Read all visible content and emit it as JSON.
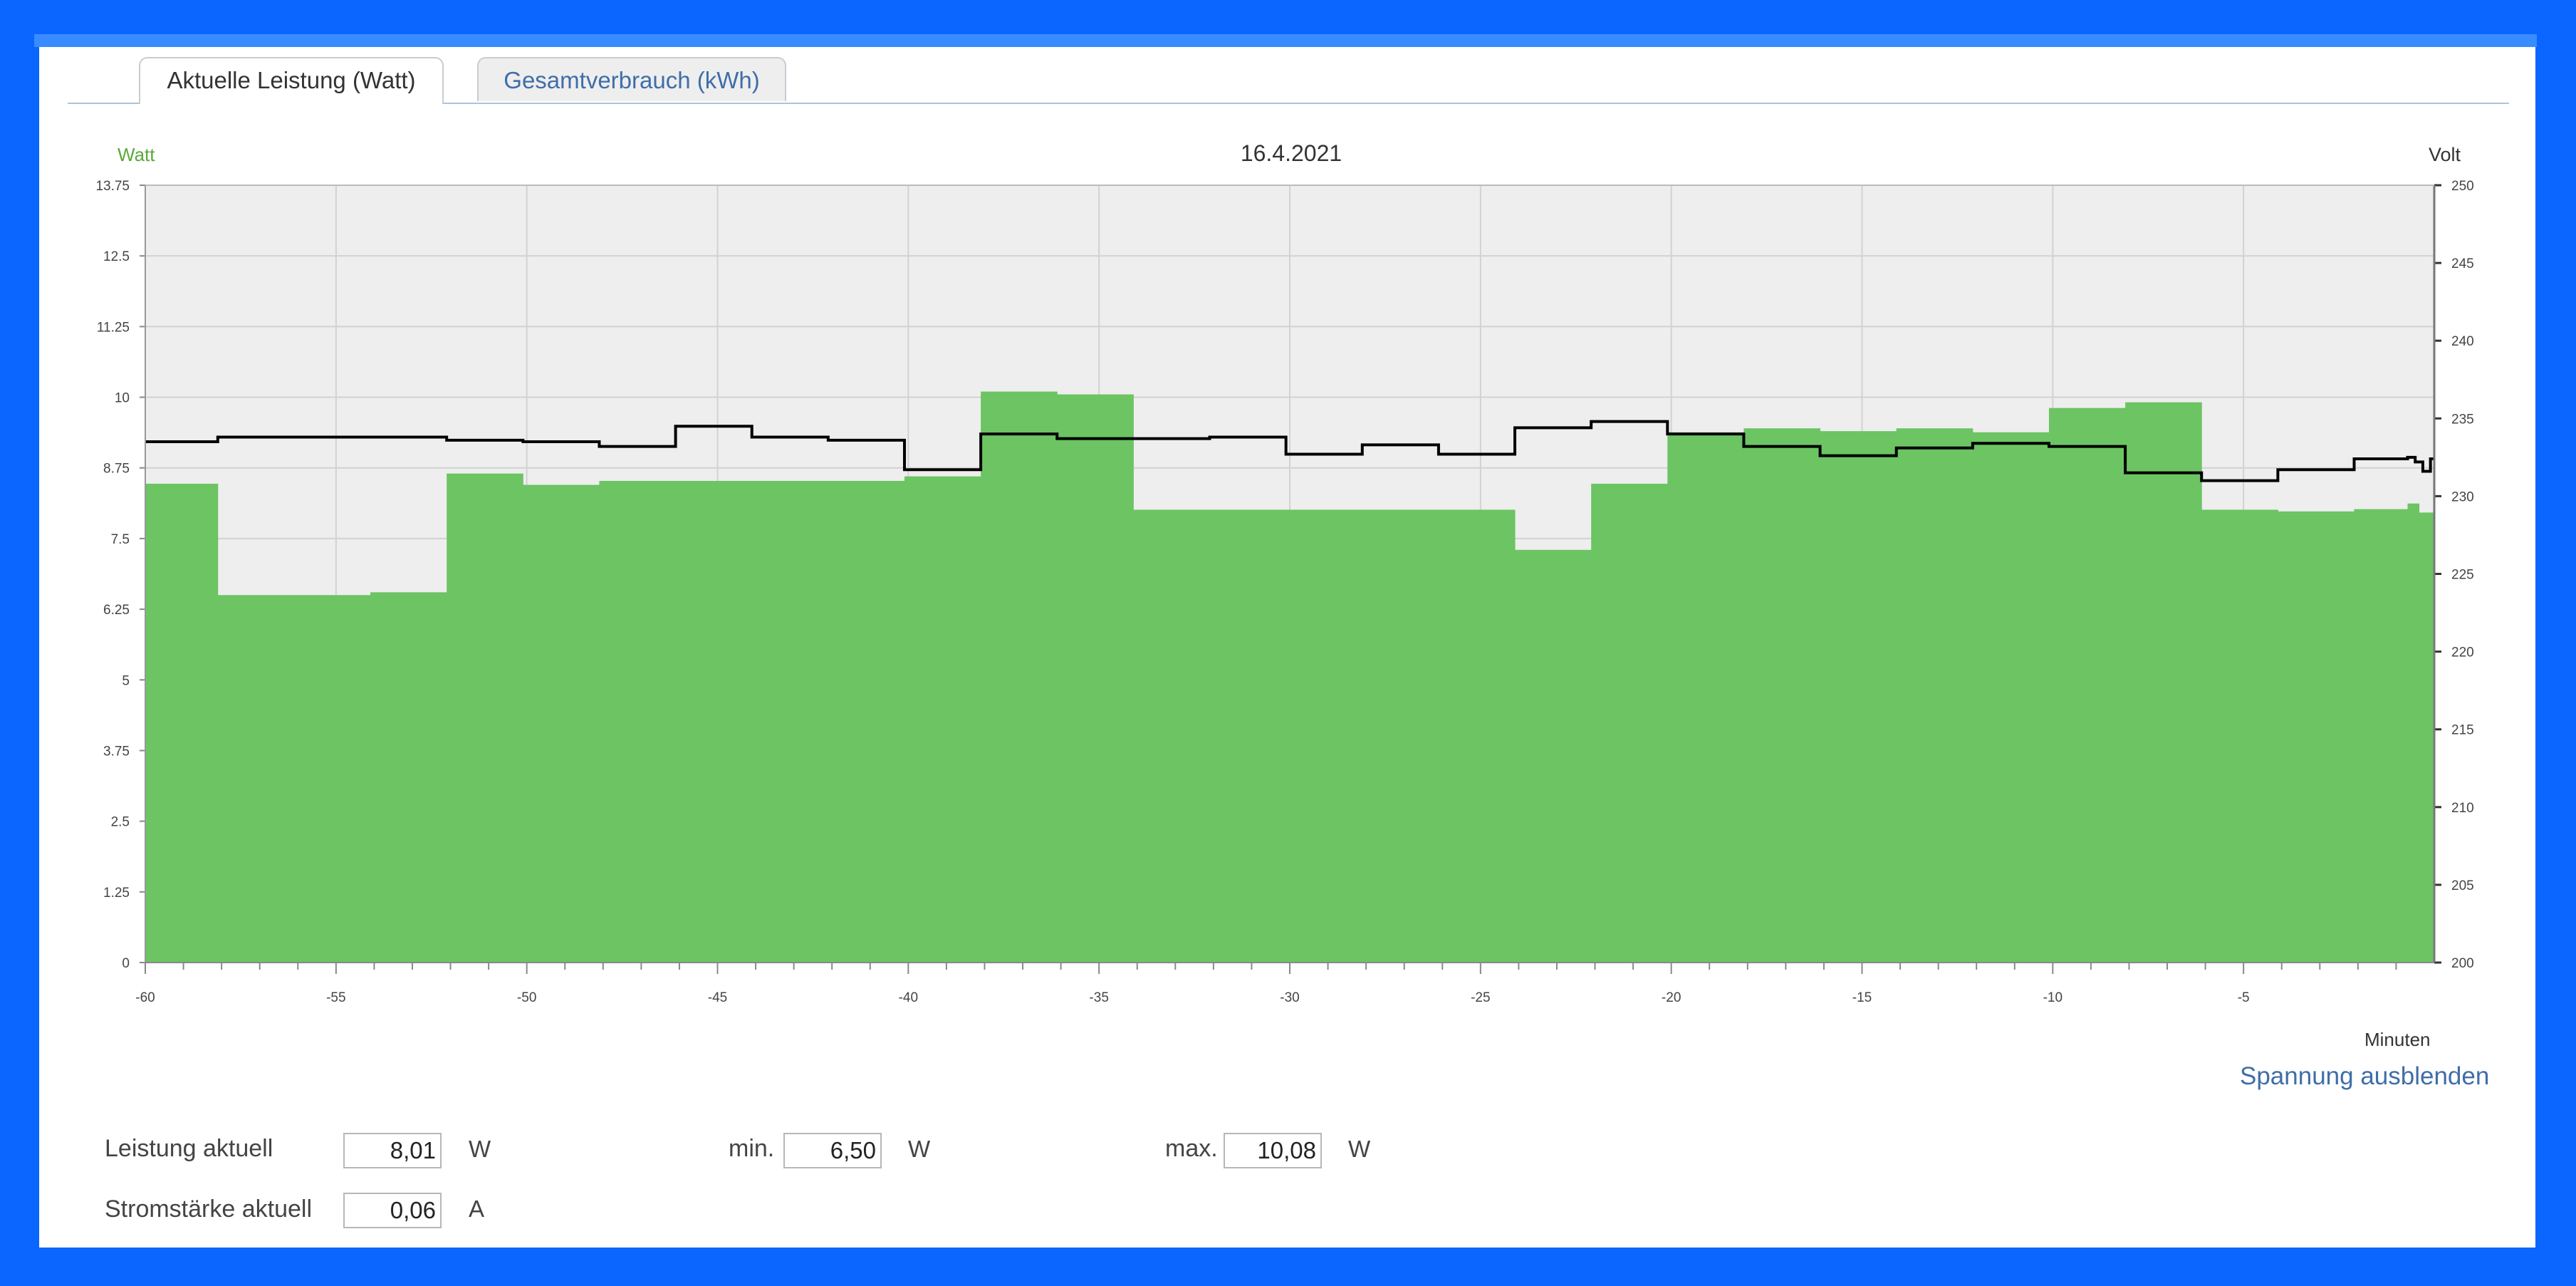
{
  "tabs": [
    "Aktuelle Leistung (Watt)",
    "Gesamtverbrauch (kWh)"
  ],
  "colors": {
    "frame": "#0a66ff",
    "power_fill": "#6cc463",
    "plot_bg": "#eeeeee",
    "voltage_line": "#000000",
    "watt_label": "#5aaa3c",
    "link": "#3f6ea8"
  },
  "chart_data": {
    "type": "area",
    "title": "16.4.2021",
    "xlabel": "Minuten",
    "ylabel_left": "Watt",
    "ylabel_right": "Volt",
    "xlim": [
      -60,
      0
    ],
    "ylim_left": [
      0,
      13.75
    ],
    "ylim_right": [
      200,
      250
    ],
    "x_ticks": [
      "-60",
      "-55",
      "-50",
      "-45",
      "-40",
      "-35",
      "-30",
      "-25",
      "-20",
      "-15",
      "-10",
      "-5"
    ],
    "y_ticks_left": [
      "0",
      "1.25",
      "2.5",
      "3.75",
      "5",
      "6.25",
      "7.5",
      "8.75",
      "10",
      "11.25",
      "12.5",
      "13.75"
    ],
    "y_ticks_right": [
      "200",
      "205",
      "210",
      "215",
      "220",
      "225",
      "230",
      "235",
      "240",
      "245",
      "250"
    ],
    "grid": true,
    "series": [
      {
        "name": "Watt",
        "step": true,
        "x": [
          -60,
          -58.1,
          -54.1,
          -52.1,
          -50.1,
          -48.1,
          -40.1,
          -38.1,
          -36.1,
          -34.1,
          -24.1,
          -22.1,
          -20.1,
          -18.1,
          -16.1,
          -14.1,
          -12.1,
          -10.1,
          -8.1,
          -6.1,
          -4.1,
          -2.1,
          -0.7,
          -0.4
        ],
        "values": [
          8.47,
          6.5,
          6.55,
          8.65,
          8.45,
          8.52,
          8.6,
          10.1,
          10.05,
          8.01,
          7.3,
          8.47,
          9.38,
          9.45,
          9.4,
          9.45,
          9.38,
          9.81,
          9.91,
          8.01,
          7.98,
          8.02,
          8.12,
          7.96
        ]
      },
      {
        "name": "Volt",
        "step": true,
        "x": [
          -60,
          -58.1,
          -54.1,
          -52.1,
          -50.1,
          -48.1,
          -46.1,
          -44.1,
          -42.1,
          -40.1,
          -38.1,
          -36.1,
          -34.1,
          -32.1,
          -30.1,
          -28.1,
          -26.1,
          -24.1,
          -22.1,
          -20.1,
          -18.1,
          -16.1,
          -14.1,
          -12.1,
          -10.1,
          -8.1,
          -6.1,
          -4.1,
          -2.1,
          -0.7,
          -0.5,
          -0.3,
          -0.1
        ],
        "values": [
          233.5,
          233.8,
          233.8,
          233.6,
          233.5,
          233.2,
          234.5,
          233.8,
          233.6,
          231.7,
          234.0,
          233.7,
          233.7,
          233.8,
          232.7,
          233.3,
          232.7,
          234.4,
          234.8,
          234.0,
          233.2,
          232.6,
          233.1,
          233.4,
          233.2,
          231.5,
          231.0,
          231.7,
          232.4,
          232.5,
          232.2,
          231.6,
          232.4
        ]
      }
    ]
  },
  "readouts": {
    "leistung_label": "Leistung aktuell",
    "leistung_value": "8,01",
    "leistung_unit": "W",
    "min_label": "min.",
    "min_value": "6,50",
    "min_unit": "W",
    "max_label": "max.",
    "max_value": "10,08",
    "max_unit": "W",
    "strom_label": "Stromstärke aktuell",
    "strom_value": "0,06",
    "strom_unit": "A"
  },
  "toggle_voltage_label": "Spannung ausblenden"
}
